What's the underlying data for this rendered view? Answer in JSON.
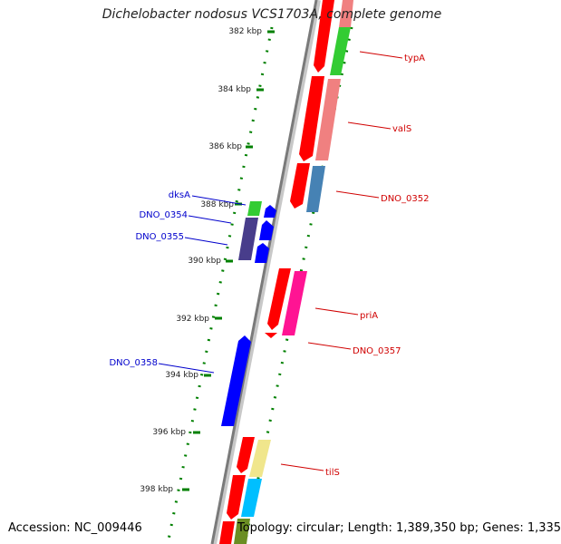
{
  "title": "Dichelobacter nodosus VCS1703A, complete genome",
  "footer": {
    "accession": "Accession: NC_009446",
    "summary": "Topology: circular; Length: 1,389,350 bp; Genes: 1,335"
  },
  "ticks": [
    "382 kbp",
    "384 kbp",
    "386 kbp",
    "388 kbp",
    "390 kbp",
    "392 kbp",
    "394 kbp",
    "396 kbp",
    "398 kbp"
  ],
  "genes_forward": [
    {
      "name": "typA",
      "color": "#33cc33"
    },
    {
      "name": "valS",
      "color": "#f08080"
    },
    {
      "name": "DNO_0352",
      "color": "#4682b4"
    },
    {
      "name": "priA",
      "color": "#ff0000"
    },
    {
      "name": "DNO_0357",
      "color": "#ff1493"
    },
    {
      "name": "tilS",
      "color": "#f0e68c"
    }
  ],
  "genes_reverse": [
    {
      "name": "dksA",
      "color": "#33cc33"
    },
    {
      "name": "DNO_0354",
      "color": "#483d8b"
    },
    {
      "name": "DNO_0355",
      "color": "#0000ff"
    },
    {
      "name": "DNO_0358",
      "color": "#0000ff"
    }
  ],
  "colors": {
    "cds_forward": "#ff0000",
    "cds_reverse": "#0000ff",
    "backbone": "#808080",
    "gc_track": "#008000",
    "label_forward": "#d00000",
    "label_reverse": "#0000cc"
  }
}
